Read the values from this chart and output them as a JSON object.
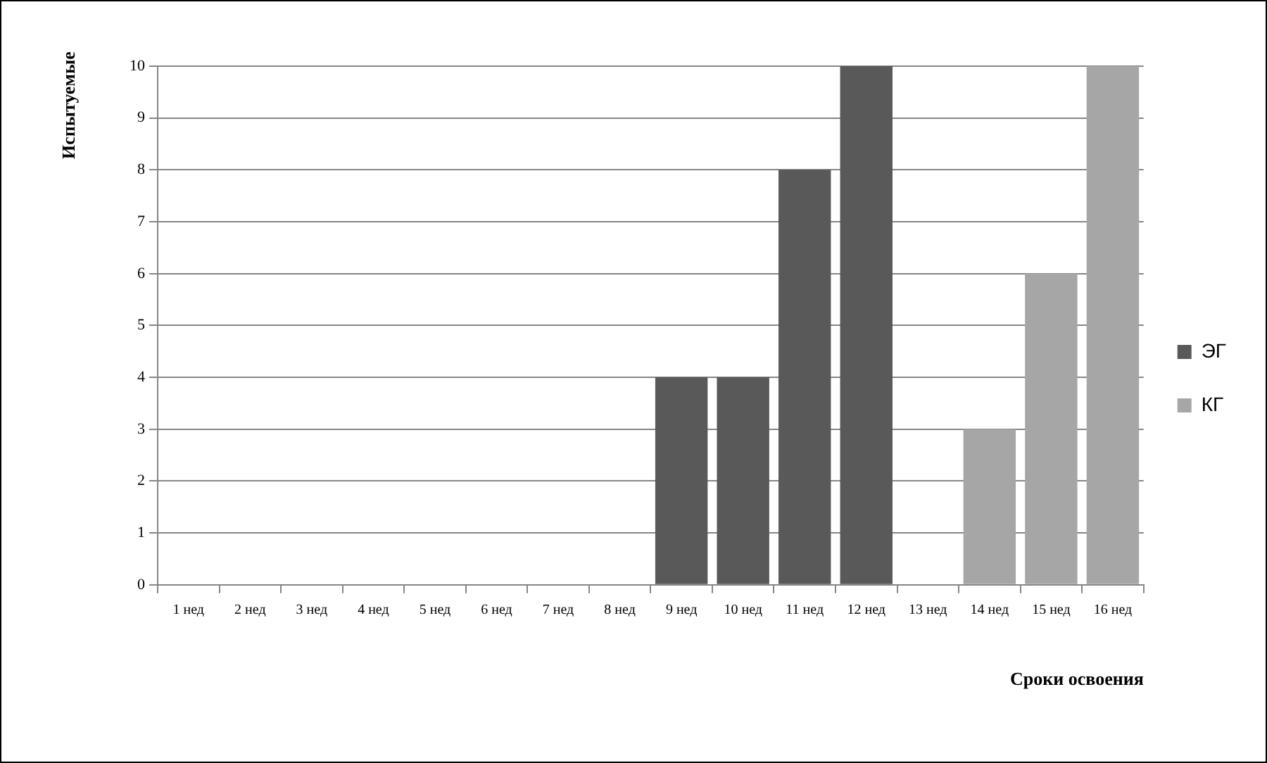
{
  "chart_data": {
    "type": "bar",
    "stacked": true,
    "xlabel": "Сроки освоения",
    "ylabel": "Испытуемые",
    "categories": [
      "1 нед",
      "2 нед",
      "3 нед",
      "4 нед",
      "5 нед",
      "6 нед",
      "7 нед",
      "8 нед",
      "9 нед",
      "10 нед",
      "11 нед",
      "12 нед",
      "13 нед",
      "14 нед",
      "15 нед",
      "16 нед"
    ],
    "series": [
      {
        "name": "ЭГ",
        "color": "#595959",
        "values": [
          0,
          0,
          0,
          0,
          0,
          0,
          0,
          0,
          4,
          4,
          8,
          10,
          0,
          0,
          0,
          0
        ]
      },
      {
        "name": "КГ",
        "color": "#a6a6a6",
        "values": [
          0,
          0,
          0,
          0,
          0,
          0,
          0,
          0,
          0,
          0,
          0,
          0,
          0,
          3,
          6,
          10
        ]
      }
    ],
    "ylim": [
      0,
      10
    ],
    "yticks": [
      0,
      1,
      2,
      3,
      4,
      5,
      6,
      7,
      8,
      9,
      10
    ],
    "grid": "y",
    "legend": "right"
  }
}
